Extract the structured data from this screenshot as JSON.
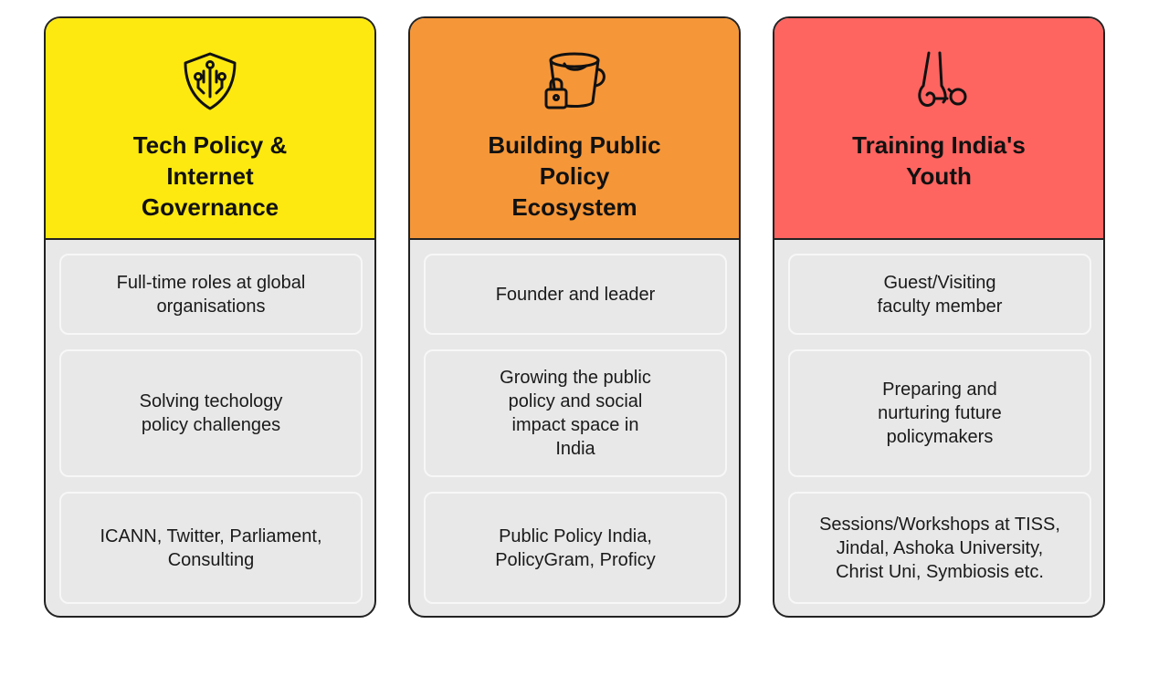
{
  "cards": [
    {
      "title": "Tech Policy &\nInternet\nGovernance",
      "color": "#fde910",
      "icon": "shield-circuit-icon",
      "items": [
        "Full-time roles at global\norganisations",
        "Solving techology\npolicy challenges",
        "ICANN, Twitter, Parliament,\nConsulting"
      ]
    },
    {
      "title": "Building Public\nPolicy\nEcosystem",
      "color": "#f59638",
      "icon": "bucket-lock-icon",
      "items": [
        "Founder and leader",
        "Growing the public\npolicy and social\nimpact space in\nIndia",
        "Public Policy India,\nPolicyGram, Proficy"
      ]
    },
    {
      "title": "Training India's\nYouth",
      "color": "#fe6460",
      "icon": "stethoscope-icon",
      "items": [
        "Guest/Visiting\nfaculty member",
        "Preparing and\nnurturing future\npolicymakers",
        "Sessions/Workshops at TISS,\nJindal, Ashoka University,\nChrist Uni, Symbiosis etc."
      ]
    }
  ]
}
